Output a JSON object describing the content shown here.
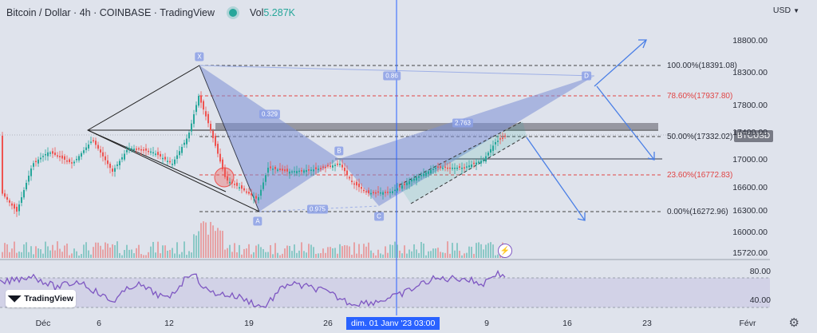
{
  "header": {
    "symbol_title": "Bitcoin / Dollar · 4h · COINBASE · TradingView",
    "vol_label": "Vol",
    "vol_value": "5.287K"
  },
  "currency": "USD",
  "price_axis": [
    "18800.00",
    "18300.00",
    "17800.00",
    "17400.00",
    "17000.00",
    "16600.00",
    "16300.00",
    "16000.00",
    "15720.00"
  ],
  "rsi_axis": [
    "80.00",
    "40.00"
  ],
  "time_axis": [
    "Déc",
    "6",
    "12",
    "19",
    "26",
    "9",
    "16",
    "23",
    "Févr"
  ],
  "crosshair_date": "dim. 01 Janv '23   03:00",
  "price_tag": "BTCUSD",
  "fib_levels": [
    "100.00%(18391.08)",
    "78.60%(17937.80)",
    "50.00%(17332.02)",
    "23.60%(16772.83)",
    "0.00%(16272.96)"
  ],
  "pattern_labels": {
    "x": "X",
    "a": "A",
    "b": "B",
    "c": "C",
    "d": "D",
    "ratio_xb": "0.329",
    "ratio_xd": "0.86",
    "ratio_ac": "0.975",
    "ratio_bd": "2.763"
  },
  "logo_text": "TradingView",
  "icons": {
    "live": "live-status-dot",
    "settings": "gear-icon",
    "bolt": "lightning-icon",
    "currency": "chevron-down-icon"
  },
  "colors": {
    "background": "#dfe3ec",
    "up": "#26a69a",
    "down": "#ef5350",
    "pattern": "#7b8fd6",
    "rsi": "#7e57c2",
    "crosshair": "#2962ff"
  }
}
